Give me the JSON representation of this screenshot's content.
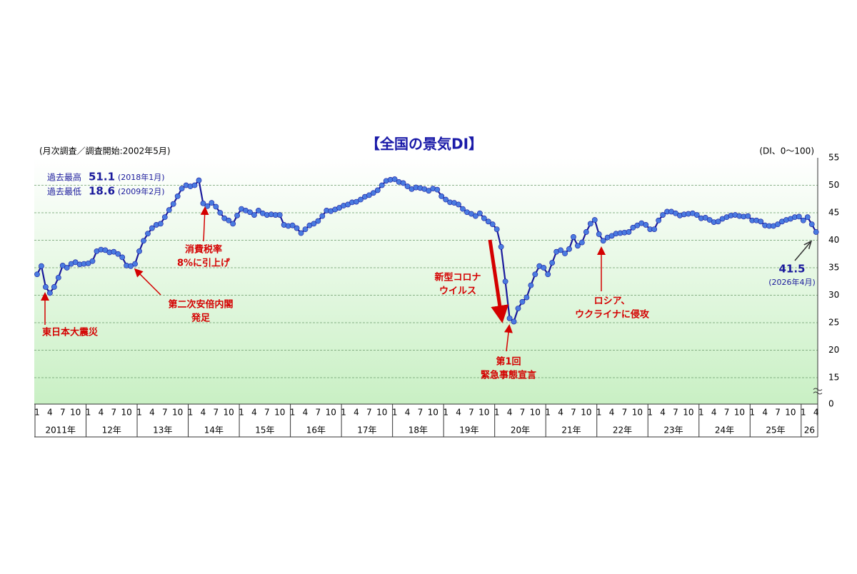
{
  "chart_data": {
    "type": "line",
    "title": "【全国の景気DI】",
    "subtitle": "(月次調査／調査開始:2002年5月)",
    "unit_label": "(DI、0〜100)",
    "record_high": {
      "label": "過去最高",
      "value": 51.1,
      "date": "(2018年1月)"
    },
    "record_low": {
      "label": "過去最低",
      "value": 18.6,
      "date": "(2009年2月)"
    },
    "categories": [
      "1",
      null,
      null,
      "4",
      null,
      null,
      "7",
      null,
      null,
      "10",
      null,
      null,
      "1",
      null,
      null,
      "4",
      null,
      null,
      "7",
      null,
      null,
      "10",
      null,
      null,
      "1",
      null,
      null,
      "4",
      null,
      null,
      "7",
      null,
      null,
      "10",
      null,
      null,
      "1",
      null,
      null,
      "4",
      null,
      null,
      "7",
      null,
      null,
      "10",
      null,
      null,
      "1",
      null,
      null,
      "4",
      null,
      null,
      "7",
      null,
      null,
      "10",
      null,
      null,
      "1",
      null,
      null,
      "4",
      null,
      null,
      "7",
      null,
      null,
      "10",
      null,
      null,
      "1",
      null,
      null,
      "4",
      null,
      null,
      "7",
      null,
      null,
      "10",
      null,
      null,
      "1",
      null,
      null,
      "4",
      null,
      null,
      "7",
      null,
      null,
      "10",
      null,
      null,
      "1",
      null,
      null,
      "4",
      null,
      null,
      "7",
      null,
      null,
      "10",
      null,
      null,
      "1",
      null,
      null,
      "4",
      null,
      null,
      "7",
      null,
      null,
      "10",
      null,
      null,
      "1",
      null,
      null,
      "4",
      null,
      null,
      "7",
      null,
      null,
      "10",
      null,
      null,
      "1",
      null,
      null,
      "4",
      null,
      null,
      "7",
      null,
      null,
      "10",
      null,
      null,
      "1",
      null,
      null,
      "4",
      null,
      null,
      "7",
      null,
      null,
      "10",
      null,
      null,
      "1",
      null,
      null,
      "4",
      null,
      null,
      "7",
      null,
      null,
      "10",
      null,
      null,
      "1",
      null,
      null,
      "4",
      null,
      null,
      "7",
      null,
      null,
      "10",
      null,
      null,
      "1",
      null,
      null,
      "4"
    ],
    "year_labels": [
      "2011年",
      "12年",
      "13年",
      "14年",
      "15年",
      "16年",
      "17年",
      "18年",
      "19年",
      "20年",
      "21年",
      "22年",
      "23年",
      "24年",
      "25年",
      "26"
    ],
    "series": [
      {
        "name": "景気DI",
        "color": "#1a1a9c",
        "marker_color": "#4a7be0",
        "values": [
          33.8,
          35.3,
          31.5,
          30.4,
          31.5,
          33.2,
          35.4,
          35.0,
          35.7,
          36.0,
          35.6,
          35.7,
          35.8,
          36.2,
          38.0,
          38.3,
          38.2,
          37.8,
          37.9,
          37.5,
          36.9,
          35.4,
          35.3,
          35.7,
          38.0,
          39.9,
          41.2,
          42.2,
          42.8,
          43.0,
          44.2,
          45.5,
          46.6,
          48.0,
          49.4,
          50.0,
          49.8,
          50.0,
          50.9,
          46.7,
          46.2,
          46.8,
          46.1,
          45.0,
          44.0,
          43.6,
          43.0,
          44.5,
          45.7,
          45.4,
          45.1,
          44.6,
          45.4,
          44.9,
          44.6,
          44.7,
          44.6,
          44.6,
          42.8,
          42.6,
          42.7,
          42.2,
          41.3,
          42.0,
          42.7,
          43.0,
          43.5,
          44.4,
          45.4,
          45.3,
          45.6,
          45.9,
          46.3,
          46.5,
          46.9,
          47.0,
          47.4,
          47.9,
          48.2,
          48.6,
          49.1,
          50.0,
          50.8,
          51.0,
          51.1,
          50.6,
          50.4,
          49.8,
          49.3,
          49.6,
          49.5,
          49.3,
          49.0,
          49.4,
          49.2,
          48.0,
          47.4,
          46.9,
          46.8,
          46.5,
          45.7,
          45.1,
          44.8,
          44.4,
          44.9,
          44.0,
          43.4,
          42.9,
          42.0,
          38.8,
          32.5,
          25.8,
          25.2,
          27.6,
          28.8,
          29.6,
          31.8,
          33.8,
          35.3,
          35.0,
          33.8,
          35.9,
          37.9,
          38.2,
          37.6,
          38.4,
          40.6,
          39.0,
          39.6,
          41.5,
          43.0,
          43.7,
          41.1,
          39.9,
          40.5,
          40.8,
          41.2,
          41.3,
          41.4,
          41.5,
          42.3,
          42.7,
          43.1,
          42.8,
          42.0,
          42.0,
          43.6,
          44.6,
          45.2,
          45.2,
          44.9,
          44.5,
          44.7,
          44.8,
          44.9,
          44.6,
          44.0,
          44.1,
          43.7,
          43.3,
          43.4,
          43.9,
          44.2,
          44.5,
          44.6,
          44.4,
          44.3,
          44.4,
          43.6,
          43.6,
          43.4,
          42.7,
          42.6,
          42.6,
          42.9,
          43.4,
          43.7,
          43.9,
          44.2,
          44.3,
          43.6,
          44.2,
          42.9,
          41.5
        ]
      }
    ],
    "ylim": [
      0,
      55
    ],
    "yticks": [
      0,
      15,
      20,
      25,
      30,
      35,
      40,
      45,
      50,
      55
    ],
    "axis_break": true,
    "grid": true,
    "annotations": [
      {
        "lines": [
          "東日本大震災"
        ],
        "color": "#d40000"
      },
      {
        "lines": [
          "第二次安倍内閣",
          "発足"
        ],
        "color": "#d40000"
      },
      {
        "lines": [
          "消費税率",
          "8%に引上げ"
        ],
        "color": "#d40000"
      },
      {
        "lines": [
          "新型コロナ",
          "ウイルス"
        ],
        "color": "#d40000"
      },
      {
        "lines": [
          "第1回",
          "緊急事態宣言"
        ],
        "color": "#d40000"
      },
      {
        "lines": [
          "ロシア、",
          "ウクライナに侵攻"
        ],
        "color": "#d40000"
      },
      {
        "lines": [
          "41.5",
          "(2026年4月)"
        ],
        "color": "#1a1a9c"
      }
    ]
  }
}
